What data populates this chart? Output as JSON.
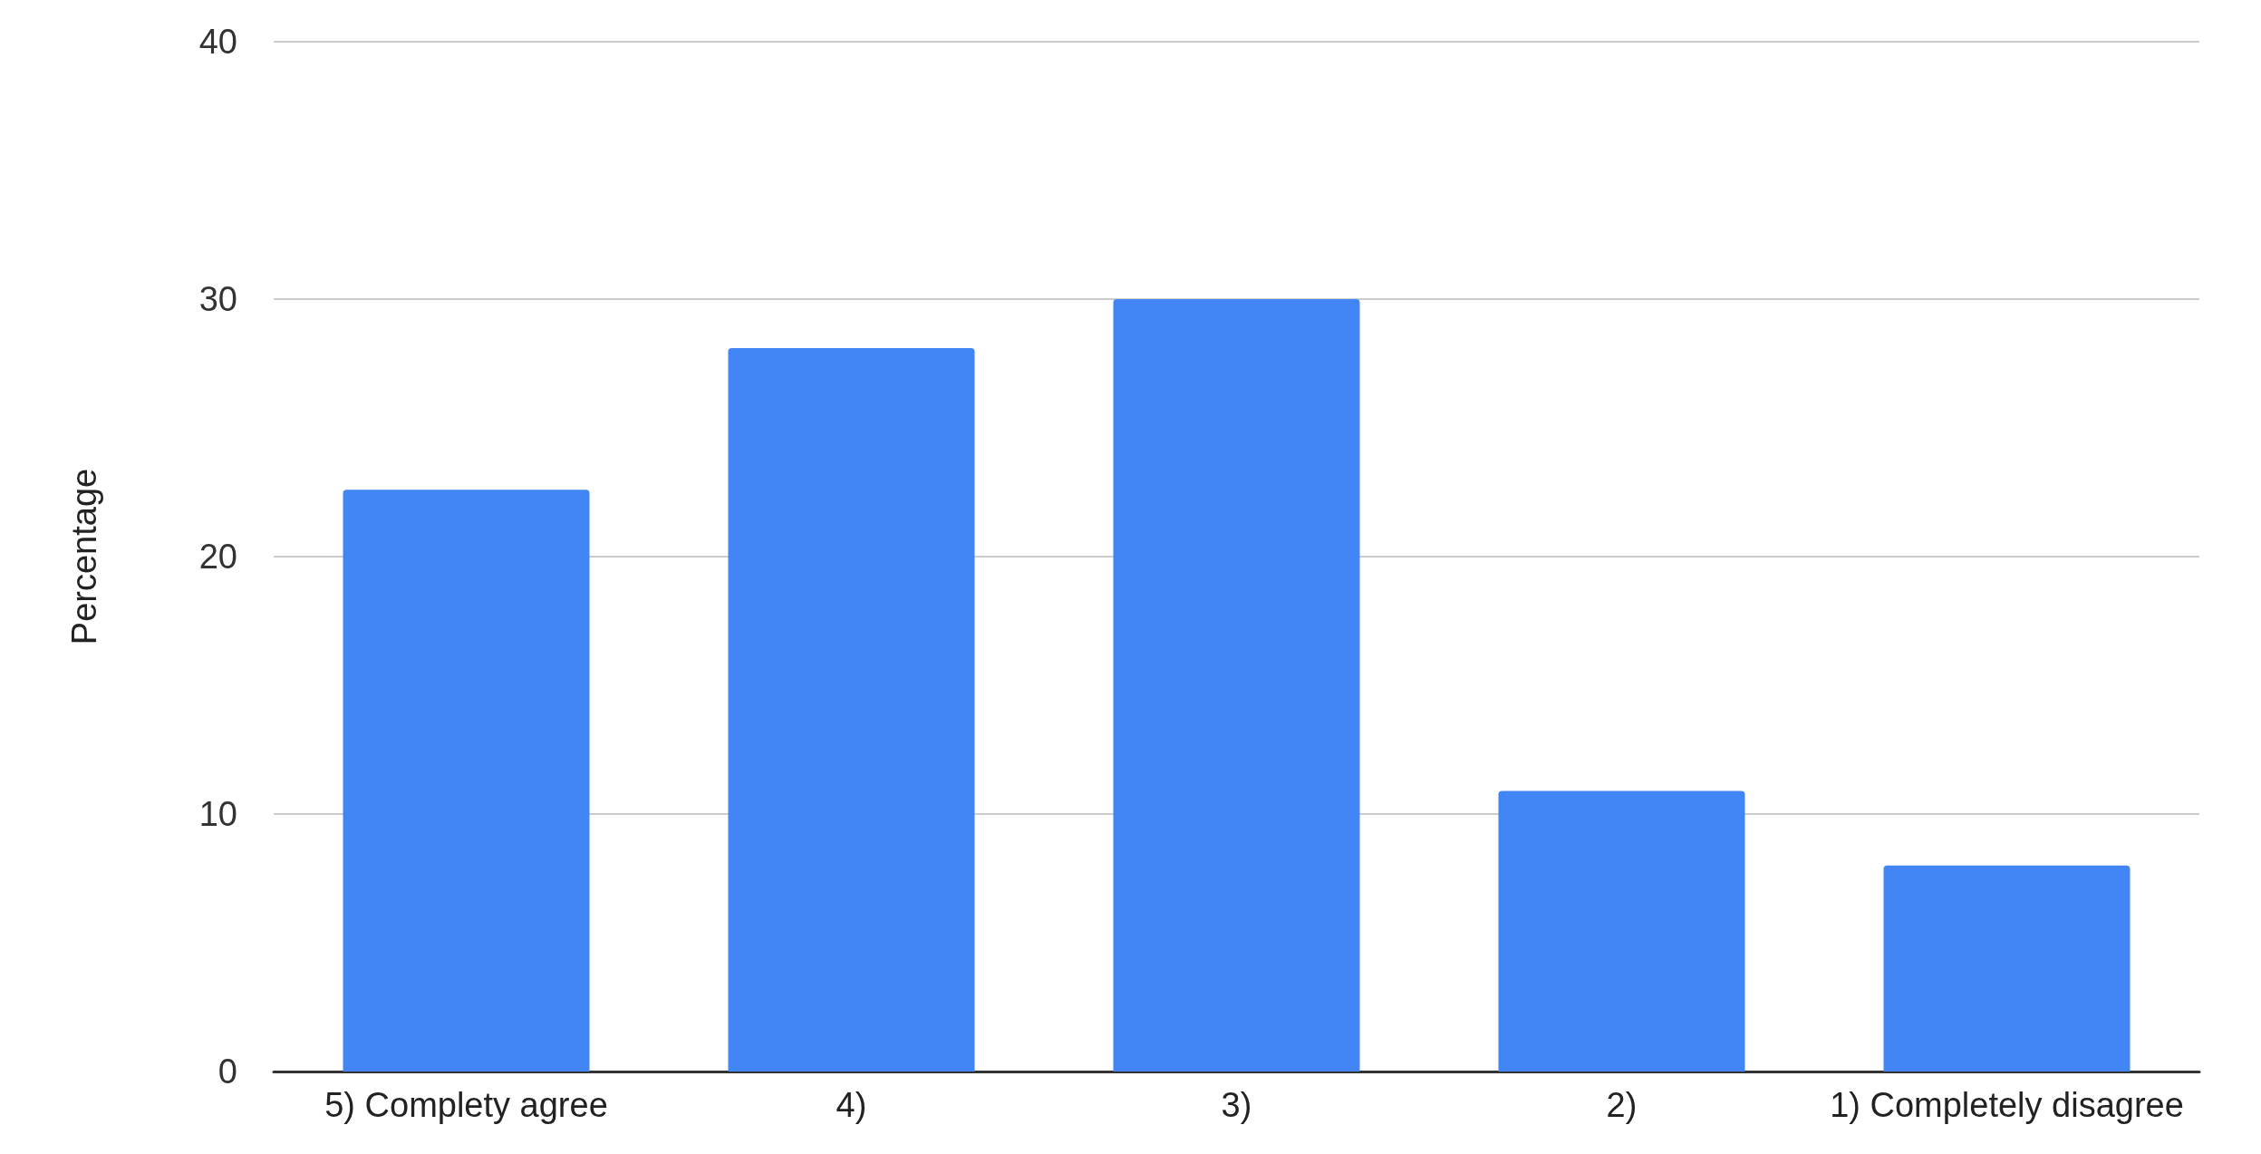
{
  "chart_data": {
    "type": "bar",
    "ylabel": "Percentage",
    "categories": [
      "5) Complety agree",
      "4)",
      "3)",
      "2)",
      "1) Completely disagree"
    ],
    "values": [
      22.6,
      28.1,
      30.0,
      10.9,
      8.0
    ],
    "color": "#4285f4",
    "ylim": [
      0,
      40
    ],
    "yticks": [
      0,
      10,
      20,
      30,
      40
    ],
    "grid": "y"
  }
}
